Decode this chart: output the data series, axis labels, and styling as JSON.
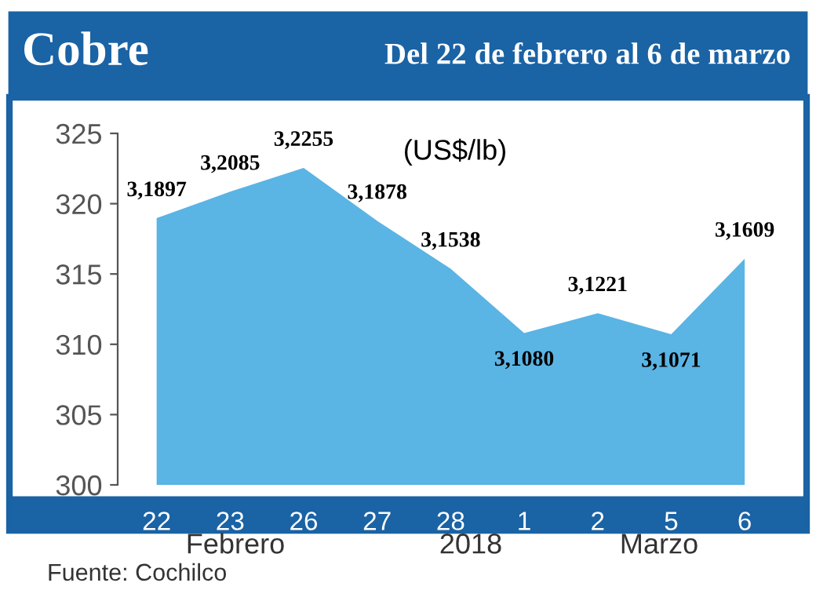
{
  "chart_data": {
    "type": "area",
    "title": "Cobre",
    "subtitle": "Del 22 de febrero al 6 de marzo",
    "ylabel": "(US$/lb)",
    "categories": [
      "22",
      "23",
      "26",
      "27",
      "28",
      "1",
      "2",
      "5",
      "6"
    ],
    "series": [
      {
        "color": "#5ab4e4",
        "values": [
          318.97,
          320.85,
          322.55,
          318.78,
          315.38,
          310.8,
          312.21,
          310.71,
          316.09
        ],
        "value_labels": [
          "3,1897",
          "3,2085",
          "3,2255",
          "3,1878",
          "3,1538",
          "3,1080",
          "3,1221",
          "3,1071",
          "3,1609"
        ]
      }
    ],
    "ylim": [
      300,
      325
    ],
    "yticks": [
      300,
      305,
      310,
      315,
      320,
      325
    ],
    "grid": false,
    "legend": false,
    "annotations": [
      "Febrero",
      "2018",
      "Marzo",
      "Fuente: Cochilco"
    ]
  }
}
